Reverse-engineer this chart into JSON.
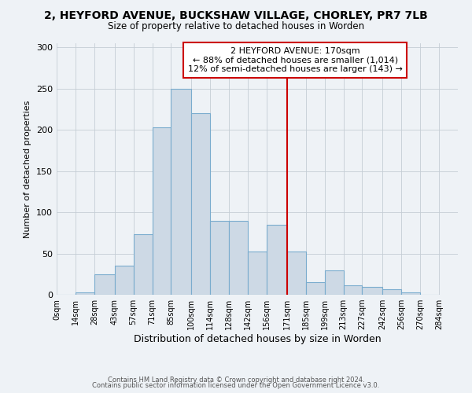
{
  "title": "2, HEYFORD AVENUE, BUCKSHAW VILLAGE, CHORLEY, PR7 7LB",
  "subtitle": "Size of property relative to detached houses in Worden",
  "xlabel": "Distribution of detached houses by size in Worden",
  "ylabel": "Number of detached properties",
  "bar_left_edges": [
    0,
    14,
    28,
    43,
    57,
    71,
    85,
    100,
    114,
    128,
    142,
    156,
    171,
    185,
    199,
    213,
    227,
    242,
    256,
    270
  ],
  "bar_widths": [
    14,
    14,
    15,
    14,
    14,
    14,
    15,
    14,
    14,
    14,
    14,
    15,
    14,
    14,
    14,
    14,
    15,
    14,
    14,
    14
  ],
  "bar_heights": [
    0,
    3,
    25,
    35,
    73,
    203,
    250,
    220,
    90,
    90,
    52,
    85,
    52,
    15,
    30,
    11,
    10,
    7,
    3,
    0
  ],
  "bar_facecolor": "#cdd9e5",
  "bar_edgecolor": "#7aacce",
  "vline_x": 171,
  "vline_color": "#cc0000",
  "annotation_text_line1": "2 HEYFORD AVENUE: 170sqm",
  "annotation_text_line2": "← 88% of detached houses are smaller (1,014)",
  "annotation_text_line3": "12% of semi-detached houses are larger (143) →",
  "xlim": [
    0,
    298
  ],
  "ylim": [
    0,
    305
  ],
  "yticks": [
    0,
    50,
    100,
    150,
    200,
    250,
    300
  ],
  "xtick_labels": [
    "0sqm",
    "14sqm",
    "28sqm",
    "43sqm",
    "57sqm",
    "71sqm",
    "85sqm",
    "100sqm",
    "114sqm",
    "128sqm",
    "142sqm",
    "156sqm",
    "171sqm",
    "185sqm",
    "199sqm",
    "213sqm",
    "227sqm",
    "242sqm",
    "256sqm",
    "270sqm",
    "284sqm"
  ],
  "xtick_positions": [
    0,
    14,
    28,
    43,
    57,
    71,
    85,
    100,
    114,
    128,
    142,
    156,
    171,
    185,
    199,
    213,
    227,
    242,
    256,
    270,
    284
  ],
  "footer_line1": "Contains HM Land Registry data © Crown copyright and database right 2024.",
  "footer_line2": "Contains public sector information licensed under the Open Government Licence v3.0.",
  "bg_color": "#eef2f6",
  "grid_color": "#c5cdd5",
  "title_fontsize": 10,
  "subtitle_fontsize": 8.5,
  "ylabel_fontsize": 8,
  "xlabel_fontsize": 9,
  "ytick_fontsize": 8,
  "xtick_fontsize": 7,
  "footer_fontsize": 6,
  "annot_fontsize": 8
}
